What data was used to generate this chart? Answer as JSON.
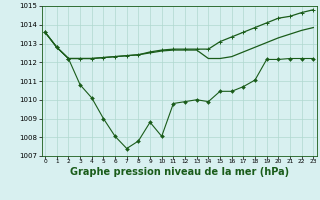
{
  "x": [
    0,
    1,
    2,
    3,
    4,
    5,
    6,
    7,
    8,
    9,
    10,
    11,
    12,
    13,
    14,
    15,
    16,
    17,
    18,
    19,
    20,
    21,
    22,
    23
  ],
  "line1": [
    1013.6,
    1012.8,
    1012.2,
    1012.2,
    1012.2,
    1012.25,
    1012.3,
    1012.35,
    1012.4,
    1012.5,
    1012.6,
    1012.65,
    1012.65,
    1012.65,
    1012.2,
    1012.2,
    1012.3,
    1012.55,
    1012.8,
    1013.05,
    1013.3,
    1013.5,
    1013.7,
    1013.85
  ],
  "line2": [
    1013.6,
    1012.8,
    1012.2,
    1012.2,
    1012.2,
    1012.25,
    1012.3,
    1012.35,
    1012.4,
    1012.55,
    1012.65,
    1012.7,
    1012.7,
    1012.7,
    1012.7,
    1013.1,
    1013.35,
    1013.6,
    1013.85,
    1014.1,
    1014.35,
    1014.45,
    1014.65,
    1014.8
  ],
  "line3": [
    1013.6,
    1012.8,
    1012.2,
    1010.8,
    1010.1,
    1009.0,
    1008.05,
    1007.4,
    1007.8,
    1008.8,
    1008.05,
    1009.8,
    1009.9,
    1010.0,
    1009.9,
    1010.45,
    1010.45,
    1010.7,
    1011.05,
    1012.15,
    1012.15,
    1012.2,
    1012.2,
    1012.2
  ],
  "ylim": [
    1007,
    1015
  ],
  "yticks": [
    1007,
    1008,
    1009,
    1010,
    1011,
    1012,
    1013,
    1014,
    1015
  ],
  "xticks": [
    0,
    1,
    2,
    3,
    4,
    5,
    6,
    7,
    8,
    9,
    10,
    11,
    12,
    13,
    14,
    15,
    16,
    17,
    18,
    19,
    20,
    21,
    22,
    23
  ],
  "line_color": "#1a5c1a",
  "bg_color": "#d8f0f0",
  "grid_color": "#b0d8d0",
  "xlabel": "Graphe pression niveau de la mer (hPa)",
  "xlabel_fontsize": 7,
  "figsize": [
    3.2,
    2.0
  ],
  "dpi": 100
}
